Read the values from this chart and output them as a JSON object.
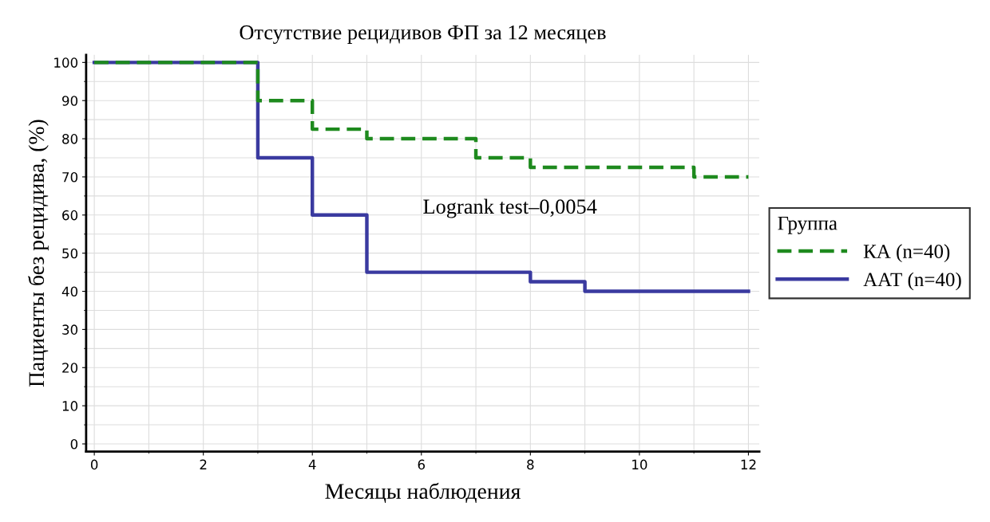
{
  "chart_data": {
    "type": "step",
    "title": "Отсутствие рецидивов ФП за 12 месяцев",
    "xlabel": "Месяцы наблюдения",
    "ylabel": "Пациенты без рецидива, (%)",
    "legend_title": "Группа",
    "series": [
      {
        "name": "КА (n=40)",
        "color": "#1e8a1e",
        "line_style": "dashed",
        "x": [
          0,
          3,
          4,
          5,
          7,
          8,
          11,
          12
        ],
        "values": [
          100,
          90,
          82.5,
          80,
          75,
          72.5,
          70,
          70
        ]
      },
      {
        "name": "ААТ (n=40)",
        "color": "#3a3aa0",
        "line_style": "solid",
        "x": [
          0,
          3,
          4,
          5,
          8,
          9,
          12
        ],
        "values": [
          100,
          75,
          60,
          45,
          42.5,
          40,
          40
        ]
      }
    ],
    "annotations": [
      "Logrank test–0,0054"
    ],
    "xlim": [
      -0.15,
      12.2
    ],
    "ylim": [
      -2,
      102
    ],
    "xticks": [
      0,
      2,
      4,
      6,
      8,
      10,
      12
    ],
    "yticks": [
      0,
      10,
      20,
      30,
      40,
      50,
      60,
      70,
      80,
      90,
      100
    ],
    "grid": true,
    "legend": "right"
  }
}
